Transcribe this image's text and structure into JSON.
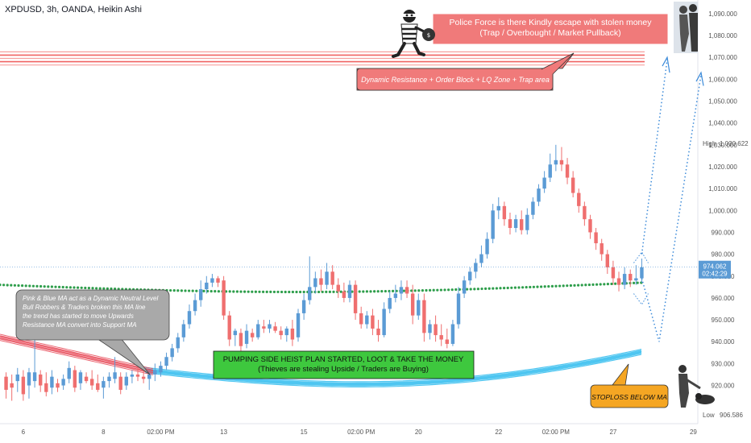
{
  "header": {
    "symbol": "XPDUSD, 3h, OANDA, Heikin Ashi"
  },
  "colors": {
    "bull": "#5b9bd5",
    "bear": "#ef6f6f",
    "ma_dots": "#2e9e4b",
    "resistance": "#ef5350",
    "support_band": "#3fc1f0",
    "pink_band": "#e74c5a"
  },
  "chart_data": {
    "type": "candlestick",
    "ylim": [
      904,
      1094
    ],
    "y_ticks": [
      920,
      930,
      940,
      950,
      960,
      970,
      980,
      990,
      1000,
      1010,
      1020,
      1030,
      1040,
      1050,
      1060,
      1070,
      1080,
      1090
    ],
    "y_tick_labels": [
      "920.000",
      "930.000",
      "940.000",
      "950.000",
      "960.000",
      "970.000",
      "980.000",
      "990.000",
      "1,000.000",
      "1,010.000",
      "1,020.000",
      "1,030.000",
      "1,040.000",
      "1,050.000",
      "1,060.000",
      "1,070.000",
      "1,080.000",
      "1,090.000"
    ],
    "x_labels": [
      {
        "label": "6",
        "i": 3
      },
      {
        "label": "8",
        "i": 17
      },
      {
        "label": "02:00 PM",
        "i": 27
      },
      {
        "label": "13",
        "i": 38
      },
      {
        "label": "15",
        "i": 52
      },
      {
        "label": "02:00 PM",
        "i": 62
      },
      {
        "label": "20",
        "i": 72
      },
      {
        "label": "22",
        "i": 86
      },
      {
        "label": "02:00 PM",
        "i": 96
      },
      {
        "label": "27",
        "i": 106
      },
      {
        "label": "29",
        "i": 120
      }
    ],
    "high": {
      "label": "High",
      "value": 1030.622,
      "text": "1,030.622"
    },
    "low": {
      "label": "Low",
      "value": 906.586,
      "text": "906.586"
    },
    "last": {
      "value": 974.062,
      "text": "974.062",
      "countdown": "02:42:29"
    },
    "candles": [
      {
        "o": 924,
        "h": 926,
        "l": 914,
        "c": 918
      },
      {
        "o": 921,
        "h": 925,
        "l": 913,
        "c": 919
      },
      {
        "o": 922,
        "h": 928,
        "l": 917,
        "c": 925
      },
      {
        "o": 924,
        "h": 927,
        "l": 913,
        "c": 916
      },
      {
        "o": 920,
        "h": 928,
        "l": 914,
        "c": 926
      },
      {
        "o": 922,
        "h": 945,
        "l": 919,
        "c": 926
      },
      {
        "o": 925,
        "h": 927,
        "l": 917,
        "c": 920
      },
      {
        "o": 921,
        "h": 926,
        "l": 915,
        "c": 917
      },
      {
        "o": 919,
        "h": 927,
        "l": 916,
        "c": 924
      },
      {
        "o": 921,
        "h": 923,
        "l": 917,
        "c": 919
      },
      {
        "o": 920,
        "h": 925,
        "l": 918,
        "c": 923
      },
      {
        "o": 923,
        "h": 931,
        "l": 921,
        "c": 928
      },
      {
        "o": 927,
        "h": 929,
        "l": 917,
        "c": 919
      },
      {
        "o": 921,
        "h": 927,
        "l": 918,
        "c": 926
      },
      {
        "o": 924,
        "h": 926,
        "l": 921,
        "c": 922
      },
      {
        "o": 923,
        "h": 927,
        "l": 918,
        "c": 920
      },
      {
        "o": 921,
        "h": 925,
        "l": 917,
        "c": 918
      },
      {
        "o": 919,
        "h": 924,
        "l": 914,
        "c": 922
      },
      {
        "o": 922,
        "h": 926,
        "l": 919,
        "c": 924
      },
      {
        "o": 923,
        "h": 933,
        "l": 921,
        "c": 926
      },
      {
        "o": 924,
        "h": 926,
        "l": 916,
        "c": 918
      },
      {
        "o": 920,
        "h": 926,
        "l": 918,
        "c": 924
      },
      {
        "o": 924,
        "h": 927,
        "l": 921,
        "c": 925
      },
      {
        "o": 925,
        "h": 928,
        "l": 922,
        "c": 924
      },
      {
        "o": 924,
        "h": 927,
        "l": 921,
        "c": 923
      },
      {
        "o": 923,
        "h": 926,
        "l": 918,
        "c": 925
      },
      {
        "o": 925,
        "h": 930,
        "l": 922,
        "c": 927
      },
      {
        "o": 926,
        "h": 931,
        "l": 924,
        "c": 929
      },
      {
        "o": 929,
        "h": 935,
        "l": 927,
        "c": 933
      },
      {
        "o": 933,
        "h": 939,
        "l": 931,
        "c": 937
      },
      {
        "o": 937,
        "h": 944,
        "l": 935,
        "c": 942
      },
      {
        "o": 942,
        "h": 950,
        "l": 940,
        "c": 948
      },
      {
        "o": 948,
        "h": 957,
        "l": 946,
        "c": 954
      },
      {
        "o": 954,
        "h": 962,
        "l": 952,
        "c": 959
      },
      {
        "o": 959,
        "h": 968,
        "l": 956,
        "c": 964
      },
      {
        "o": 964,
        "h": 970,
        "l": 962,
        "c": 967
      },
      {
        "o": 967,
        "h": 971,
        "l": 965,
        "c": 969
      },
      {
        "o": 969,
        "h": 970,
        "l": 965,
        "c": 967
      },
      {
        "o": 968,
        "h": 970,
        "l": 950,
        "c": 952
      },
      {
        "o": 952,
        "h": 954,
        "l": 938,
        "c": 941
      },
      {
        "o": 943,
        "h": 946,
        "l": 938,
        "c": 945
      },
      {
        "o": 944,
        "h": 946,
        "l": 935,
        "c": 938
      },
      {
        "o": 939,
        "h": 948,
        "l": 937,
        "c": 945
      },
      {
        "o": 944,
        "h": 946,
        "l": 940,
        "c": 942
      },
      {
        "o": 942,
        "h": 950,
        "l": 941,
        "c": 948
      },
      {
        "o": 947,
        "h": 950,
        "l": 944,
        "c": 946
      },
      {
        "o": 946,
        "h": 950,
        "l": 944,
        "c": 948
      },
      {
        "o": 947,
        "h": 949,
        "l": 944,
        "c": 945
      },
      {
        "o": 945,
        "h": 947,
        "l": 941,
        "c": 943
      },
      {
        "o": 943,
        "h": 947,
        "l": 940,
        "c": 946
      },
      {
        "o": 946,
        "h": 950,
        "l": 938,
        "c": 941
      },
      {
        "o": 942,
        "h": 955,
        "l": 940,
        "c": 953
      },
      {
        "o": 953,
        "h": 962,
        "l": 950,
        "c": 959
      },
      {
        "o": 959,
        "h": 979,
        "l": 957,
        "c": 965
      },
      {
        "o": 965,
        "h": 972,
        "l": 962,
        "c": 969
      },
      {
        "o": 969,
        "h": 973,
        "l": 963,
        "c": 966
      },
      {
        "o": 966,
        "h": 976,
        "l": 964,
        "c": 972
      },
      {
        "o": 972,
        "h": 975,
        "l": 964,
        "c": 966
      },
      {
        "o": 966,
        "h": 969,
        "l": 960,
        "c": 963
      },
      {
        "o": 963,
        "h": 967,
        "l": 958,
        "c": 960
      },
      {
        "o": 960,
        "h": 968,
        "l": 958,
        "c": 966
      },
      {
        "o": 966,
        "h": 968,
        "l": 950,
        "c": 953
      },
      {
        "o": 953,
        "h": 956,
        "l": 946,
        "c": 948
      },
      {
        "o": 948,
        "h": 954,
        "l": 946,
        "c": 952
      },
      {
        "o": 952,
        "h": 955,
        "l": 943,
        "c": 946
      },
      {
        "o": 946,
        "h": 950,
        "l": 940,
        "c": 943
      },
      {
        "o": 943,
        "h": 958,
        "l": 942,
        "c": 955
      },
      {
        "o": 955,
        "h": 963,
        "l": 953,
        "c": 960
      },
      {
        "o": 960,
        "h": 966,
        "l": 958,
        "c": 962
      },
      {
        "o": 962,
        "h": 968,
        "l": 959,
        "c": 965
      },
      {
        "o": 965,
        "h": 968,
        "l": 960,
        "c": 962
      },
      {
        "o": 962,
        "h": 966,
        "l": 948,
        "c": 952
      },
      {
        "o": 952,
        "h": 962,
        "l": 950,
        "c": 959
      },
      {
        "o": 959,
        "h": 962,
        "l": 940,
        "c": 944
      },
      {
        "o": 944,
        "h": 950,
        "l": 941,
        "c": 948
      },
      {
        "o": 948,
        "h": 952,
        "l": 940,
        "c": 943
      },
      {
        "o": 943,
        "h": 948,
        "l": 938,
        "c": 941
      },
      {
        "o": 941,
        "h": 946,
        "l": 937,
        "c": 939
      },
      {
        "o": 939,
        "h": 950,
        "l": 938,
        "c": 948
      },
      {
        "o": 948,
        "h": 965,
        "l": 946,
        "c": 962
      },
      {
        "o": 962,
        "h": 970,
        "l": 960,
        "c": 968
      },
      {
        "o": 968,
        "h": 974,
        "l": 966,
        "c": 972
      },
      {
        "o": 972,
        "h": 978,
        "l": 969,
        "c": 976
      },
      {
        "o": 976,
        "h": 984,
        "l": 974,
        "c": 980
      },
      {
        "o": 980,
        "h": 990,
        "l": 978,
        "c": 987
      },
      {
        "o": 987,
        "h": 1003,
        "l": 985,
        "c": 1000
      },
      {
        "o": 1000,
        "h": 1006,
        "l": 996,
        "c": 1002
      },
      {
        "o": 1002,
        "h": 1004,
        "l": 993,
        "c": 996
      },
      {
        "o": 996,
        "h": 999,
        "l": 989,
        "c": 992
      },
      {
        "o": 992,
        "h": 998,
        "l": 990,
        "c": 996
      },
      {
        "o": 996,
        "h": 1000,
        "l": 989,
        "c": 991
      },
      {
        "o": 991,
        "h": 1001,
        "l": 989,
        "c": 998
      },
      {
        "o": 998,
        "h": 1006,
        "l": 996,
        "c": 1004
      },
      {
        "o": 1004,
        "h": 1012,
        "l": 1002,
        "c": 1010
      },
      {
        "o": 1010,
        "h": 1018,
        "l": 1008,
        "c": 1015
      },
      {
        "o": 1015,
        "h": 1026,
        "l": 1013,
        "c": 1021
      },
      {
        "o": 1021,
        "h": 1030,
        "l": 1018,
        "c": 1023
      },
      {
        "o": 1023,
        "h": 1029,
        "l": 1018,
        "c": 1021
      },
      {
        "o": 1021,
        "h": 1024,
        "l": 1012,
        "c": 1015
      },
      {
        "o": 1015,
        "h": 1018,
        "l": 1006,
        "c": 1008
      },
      {
        "o": 1008,
        "h": 1010,
        "l": 999,
        "c": 1002
      },
      {
        "o": 1002,
        "h": 1004,
        "l": 993,
        "c": 996
      },
      {
        "o": 996,
        "h": 998,
        "l": 987,
        "c": 990
      },
      {
        "o": 990,
        "h": 992,
        "l": 982,
        "c": 985
      },
      {
        "o": 985,
        "h": 987,
        "l": 977,
        "c": 980
      },
      {
        "o": 980,
        "h": 982,
        "l": 971,
        "c": 974
      },
      {
        "o": 974,
        "h": 977,
        "l": 966,
        "c": 969
      },
      {
        "o": 969,
        "h": 972,
        "l": 963,
        "c": 966
      },
      {
        "o": 966,
        "h": 974,
        "l": 964,
        "c": 971
      },
      {
        "o": 971,
        "h": 973,
        "l": 965,
        "c": 968
      },
      {
        "o": 968,
        "h": 975,
        "l": 966,
        "c": 969
      },
      {
        "o": 969,
        "h": 978,
        "l": 967,
        "c": 974
      }
    ]
  },
  "annotations": {
    "police": "Police Force is there Kindly escape with stolen money\n(Trap / Overbought / Market Pullback)",
    "resistance": "Dynamic Resistance + Order Block + LQ Zone + Trap area",
    "ma_note": "Pink & Blue MA act as a Dynamic Neutral Level\nBull Robbers & Traders broken this MA line\nthe trend has started to move Upwards\nResistance MA convert into Support MA",
    "pumping": "PUMPING SIDE HEIST PLAN STARTED, LOOT & TAKE THE MONEY\n(Thieves are stealing Upside / Traders are Buying)",
    "stoploss": "STOPLOSS BELOW MA"
  }
}
